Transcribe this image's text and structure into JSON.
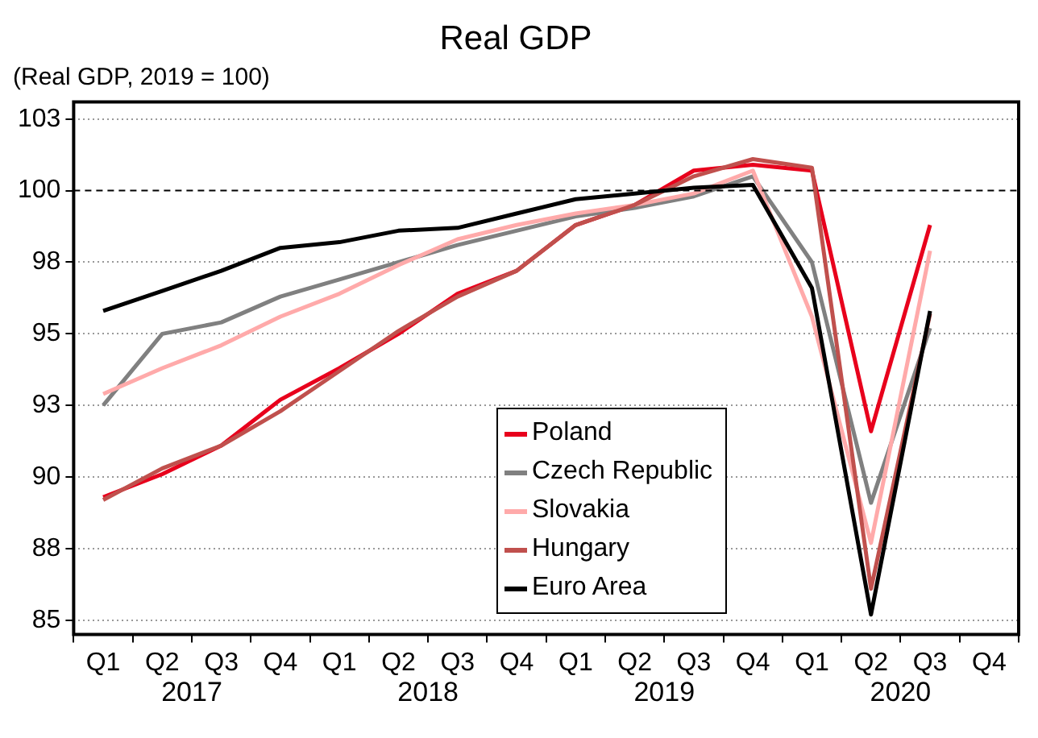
{
  "chart_data": {
    "type": "line",
    "title": "Real GDP",
    "subtitle": "(Real GDP, 2019 = 100)",
    "categories": [
      "Q1",
      "Q2",
      "Q3",
      "Q4",
      "Q1",
      "Q2",
      "Q3",
      "Q4",
      "Q1",
      "Q2",
      "Q3",
      "Q4",
      "Q1",
      "Q2",
      "Q3",
      "Q4"
    ],
    "series": [
      {
        "name": "Poland",
        "color": "#e8001c",
        "values": [
          89.3,
          90.1,
          91.1,
          92.7,
          93.8,
          95.0,
          96.4,
          97.2,
          98.8,
          99.5,
          100.7,
          100.9,
          100.7,
          91.6,
          98.8,
          null
        ]
      },
      {
        "name": "Czech Republic",
        "color": "#808080",
        "values": [
          92.5,
          95.0,
          95.4,
          96.3,
          96.9,
          97.5,
          98.1,
          98.6,
          99.1,
          99.4,
          99.8,
          100.5,
          97.5,
          89.1,
          95.2,
          null
        ]
      },
      {
        "name": "Slovakia",
        "color": "#ffaaaa",
        "values": [
          92.9,
          93.8,
          94.6,
          95.6,
          96.4,
          97.4,
          98.3,
          98.8,
          99.2,
          99.5,
          99.9,
          100.7,
          95.6,
          87.7,
          97.9,
          null
        ]
      },
      {
        "name": "Hungary",
        "color": "#c0504d",
        "values": [
          89.2,
          90.3,
          91.1,
          92.3,
          93.7,
          95.1,
          96.3,
          97.2,
          98.8,
          99.5,
          100.5,
          101.1,
          100.8,
          86.1,
          95.7,
          null
        ]
      },
      {
        "name": "Euro Area",
        "color": "#000000",
        "values": [
          95.8,
          96.5,
          97.2,
          98.0,
          98.2,
          98.6,
          98.7,
          99.2,
          99.7,
          99.9,
          100.1,
          100.2,
          96.6,
          85.2,
          95.8,
          null
        ]
      }
    ],
    "ylim": [
      84.5,
      103.1
    ],
    "yticks": [
      85,
      {
        "value": 87.5,
        "label": "88"
      },
      90,
      {
        "value": 92.5,
        "label": "93"
      },
      95,
      {
        "value": 97.5,
        "label": "98"
      },
      100,
      {
        "value": 102.5,
        "label": "103"
      }
    ],
    "grid": "y",
    "legend": "bottom",
    "line_style": "solid",
    "marker": "none",
    "ref_lines": [
      {
        "axis": "y",
        "value": 100,
        "line_style": "dashed",
        "color": "#000000"
      }
    ],
    "annotations": [
      "2017",
      "2018",
      "2019",
      "2020"
    ]
  }
}
